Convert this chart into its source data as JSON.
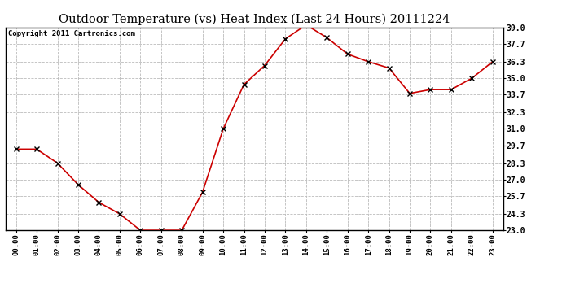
{
  "title": "Outdoor Temperature (vs) Heat Index (Last 24 Hours) 20111224",
  "copyright": "Copyright 2011 Cartronics.com",
  "x_labels": [
    "00:00",
    "01:00",
    "02:00",
    "03:00",
    "04:00",
    "05:00",
    "06:00",
    "07:00",
    "08:00",
    "09:00",
    "10:00",
    "11:00",
    "12:00",
    "13:00",
    "14:00",
    "15:00",
    "16:00",
    "17:00",
    "18:00",
    "19:00",
    "20:00",
    "21:00",
    "22:00",
    "23:00"
  ],
  "y_values": [
    29.4,
    29.4,
    28.3,
    26.6,
    25.2,
    24.3,
    23.0,
    23.0,
    23.0,
    26.0,
    31.0,
    34.5,
    36.0,
    38.1,
    39.2,
    38.2,
    36.9,
    36.3,
    35.8,
    33.8,
    34.1,
    34.1,
    35.0,
    36.3
  ],
  "line_color": "#cc0000",
  "marker": "x",
  "marker_color": "#000000",
  "marker_size": 4,
  "marker_linewidth": 1.0,
  "bg_color": "#ffffff",
  "grid_color": "#bbbbbb",
  "ylim_min": 23.0,
  "ylim_max": 39.0,
  "ytick_values": [
    23.0,
    24.3,
    25.7,
    27.0,
    28.3,
    29.7,
    31.0,
    32.3,
    33.7,
    35.0,
    36.3,
    37.7,
    39.0
  ],
  "title_fontsize": 10.5,
  "copyright_fontsize": 6.5,
  "xtick_fontsize": 6.5,
  "ytick_fontsize": 7.0
}
